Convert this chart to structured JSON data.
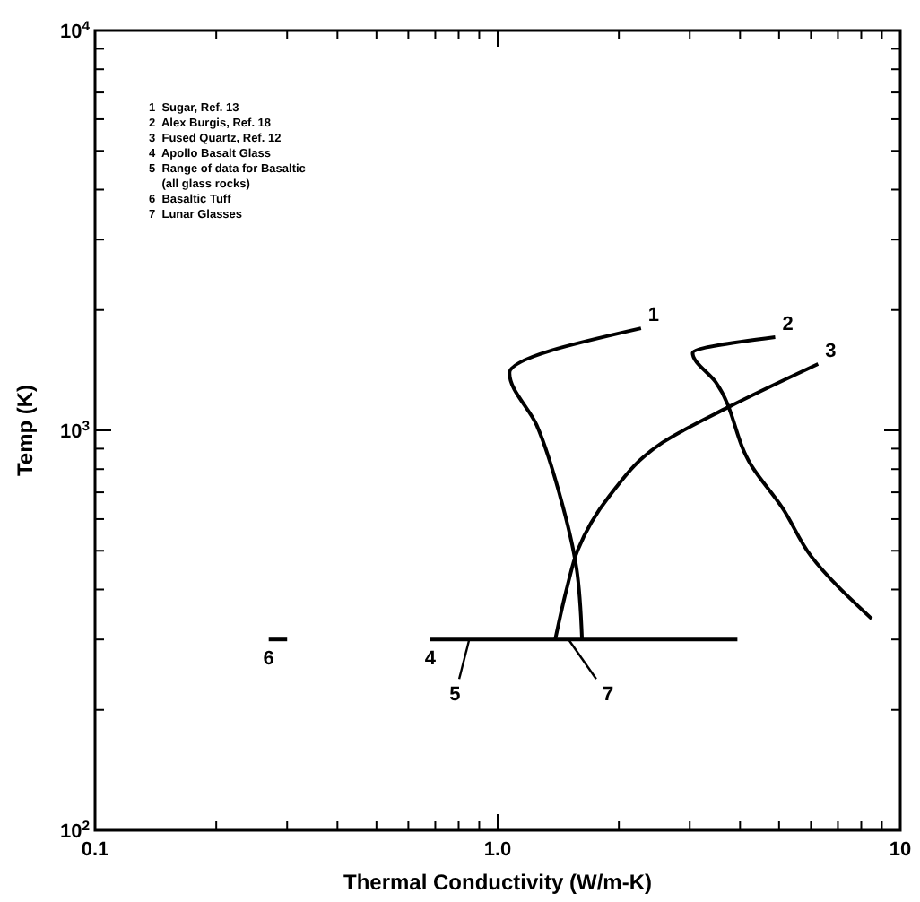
{
  "chart_data": {
    "type": "line",
    "xlabel": "Thermal Conductivity (W/m-K)",
    "ylabel": "Temp (K)",
    "log": "xy",
    "marker": "none",
    "line_style": "solid",
    "xlim": [
      0.1,
      10
    ],
    "ylim": [
      100,
      10000
    ],
    "xticks": [
      {
        "value": 0.1,
        "label": "0.1"
      },
      {
        "value": 0.2,
        "label": null
      },
      {
        "value": 0.3,
        "label": null
      },
      {
        "value": 0.4,
        "label": null
      },
      {
        "value": 0.5,
        "label": null
      },
      {
        "value": 0.6,
        "label": null
      },
      {
        "value": 0.7,
        "label": null
      },
      {
        "value": 0.8,
        "label": null
      },
      {
        "value": 0.9,
        "label": null
      },
      {
        "value": 1,
        "label": "1.0"
      },
      {
        "value": 2,
        "label": null
      },
      {
        "value": 3,
        "label": null
      },
      {
        "value": 4,
        "label": null
      },
      {
        "value": 5,
        "label": null
      },
      {
        "value": 6,
        "label": null
      },
      {
        "value": 7,
        "label": null
      },
      {
        "value": 8,
        "label": null
      },
      {
        "value": 9,
        "label": null
      },
      10
    ],
    "yticks": [
      {
        "value": 100,
        "label": "10$^{2}$"
      },
      {
        "value": 200,
        "label": null
      },
      {
        "value": 300,
        "label": null
      },
      {
        "value": 400,
        "label": null
      },
      {
        "value": 500,
        "label": null
      },
      {
        "value": 600,
        "label": null
      },
      {
        "value": 700,
        "label": null
      },
      {
        "value": 800,
        "label": null
      },
      {
        "value": 900,
        "label": null
      },
      {
        "value": 1000,
        "label": "10$^{3}$"
      },
      {
        "value": 2000,
        "label": null
      },
      {
        "value": 3000,
        "label": null
      },
      {
        "value": 4000,
        "label": null
      },
      {
        "value": 5000,
        "label": null
      },
      {
        "value": 6000,
        "label": null
      },
      {
        "value": 7000,
        "label": null
      },
      {
        "value": 8000,
        "label": null
      },
      {
        "value": 9000,
        "label": null
      },
      {
        "value": 10000,
        "label": "10$^{4}$"
      }
    ],
    "series": [
      {
        "color": "#000000",
        "x": [
          2.27,
          1.07,
          1.25,
          1.43,
          1.57,
          1.62
        ],
        "values": [
          1800,
          1392,
          1031,
          683,
          452,
          300
        ]
      },
      {
        "color": "#000000",
        "x": [
          4.89,
          3.05,
          3.48,
          4.28,
          5.09,
          6.0,
          8.49
        ],
        "values": [
          1710,
          1560,
          1320,
          813,
          641,
          485,
          338
        ]
      },
      {
        "color": "#000000",
        "x": [
          6.25,
          3.74,
          2.56,
          1.89,
          1.58,
          1.49,
          1.39
        ],
        "values": [
          1466,
          1143,
          931,
          683,
          501,
          408,
          300
        ]
      },
      {
        "color": "#000000",
        "x": [
          0.68,
          3.94
        ],
        "values": [
          300,
          300
        ]
      },
      {
        "color": "#000000",
        "x": [
          0.27,
          0.3
        ],
        "values": [
          300,
          300
        ]
      }
    ],
    "annotations": [
      "1  Sugar, Ref. 13",
      "2  Alex Burgis, Ref. 18",
      "3  Fused Quartz, Ref. 12",
      "4  Apollo Basalt Glass",
      "5  Range of data for Basaltic",
      "    (all glass rocks)",
      "6  Basaltic Tuff",
      "7  Lunar Glasses",
      {
        "text": "1",
        "x": 2.27,
        "y": 1800
      },
      {
        "text": "2",
        "x": 4.89,
        "y": 1710
      },
      {
        "text": "3",
        "x": 6.25,
        "y": 1466
      },
      {
        "text": "4",
        "x": 0.68,
        "y": 300
      },
      {
        "text": "5",
        "x": 0.85,
        "y": 300
      },
      {
        "text": "6",
        "x": 0.27,
        "y": 300
      },
      {
        "text": "7",
        "x": 1.5,
        "y": 300
      }
    ]
  }
}
